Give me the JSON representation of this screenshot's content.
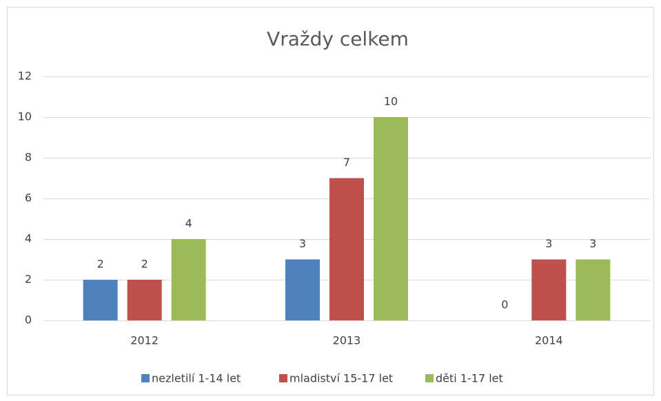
{
  "chart_data": {
    "type": "bar",
    "title": "Vraždy celkem",
    "categories": [
      "2012",
      "2013",
      "2014"
    ],
    "series": [
      {
        "name": "nezletilí 1-14 let",
        "color": "#4f81bd",
        "values": [
          2,
          3,
          0
        ]
      },
      {
        "name": "mladiství 15-17 let",
        "color": "#c0504d",
        "values": [
          2,
          7,
          3
        ]
      },
      {
        "name": "děti 1-17 let",
        "color": "#9bbb59",
        "values": [
          4,
          10,
          3
        ]
      }
    ],
    "ylim": [
      0,
      12
    ],
    "yticks": [
      0,
      2,
      4,
      6,
      8,
      10,
      12
    ],
    "grid": true,
    "legend": "bottom"
  }
}
